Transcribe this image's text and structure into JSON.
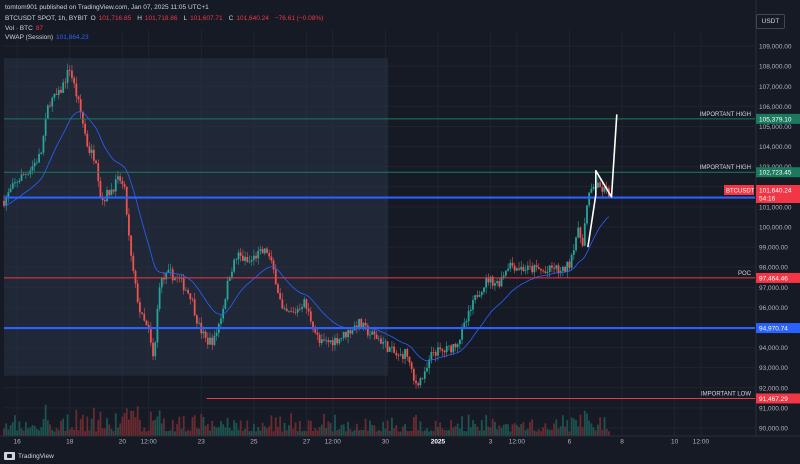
{
  "header": {
    "publisher": "tomtom901 published on TradingView.com, Jan 07, 2025 11:05 UTC+1",
    "symbol": "BTCUSDT SPOT, 1h, BYBIT",
    "open_label": "O",
    "open": "101,716.85",
    "high_label": "H",
    "high": "101,718.86",
    "low_label": "L",
    "low": "101,607.71",
    "close_label": "C",
    "close": "101,640.24",
    "change": "−76.61 (−0.08%)",
    "vol_label": "Vol · BTC",
    "vol_value": "87",
    "vwap_label": "VWAP (Session)",
    "vwap_value": "101,864.23"
  },
  "currency": "USDT",
  "footer": {
    "brand": "TradingView"
  },
  "colors": {
    "background": "#161a25",
    "up": "#26a69a",
    "down": "#ef5350",
    "red_line": "#f23645",
    "blue_line": "#2962ff",
    "green_line": "#1b7a5e",
    "vwap": "#2962ff"
  },
  "chart_data": {
    "type": "candlestick",
    "ylim": [
      89600,
      109800
    ],
    "y_ticks": [
      "109,000.00",
      "108,000.00",
      "107,000.00",
      "106,000.00",
      "105,000.00",
      "104,000.00",
      "103,000.00",
      "102,000.00",
      "101,000.00",
      "100,000.00",
      "99,000.00",
      "98,000.00",
      "97,000.00",
      "96,000.00",
      "95,000.00",
      "94,000.00",
      "93,000.00",
      "92,000.00",
      "91,000.00",
      "90,000.00"
    ],
    "x_ticks": [
      {
        "label": "16",
        "day": 0.5
      },
      {
        "label": "18",
        "day": 2.5
      },
      {
        "label": "20",
        "day": 4.5
      },
      {
        "label": "12:00",
        "day": 5.5
      },
      {
        "label": "23",
        "day": 7.5
      },
      {
        "label": "25",
        "day": 9.5
      },
      {
        "label": "27",
        "day": 11.5
      },
      {
        "label": "12:00",
        "day": 12.5
      },
      {
        "label": "30",
        "day": 14.5
      },
      {
        "label": "2025",
        "day": 16.5
      },
      {
        "label": "3",
        "day": 18.5
      },
      {
        "label": "12:00",
        "day": 19.5
      },
      {
        "label": "6",
        "day": 21.5
      },
      {
        "label": "8",
        "day": 23.5
      },
      {
        "label": "10",
        "day": 25.5
      },
      {
        "label": "12:00",
        "day": 26.5
      }
    ],
    "price_path": [
      [
        0,
        101300
      ],
      [
        0.5,
        102300
      ],
      [
        1.0,
        102900
      ],
      [
        1.4,
        103600
      ],
      [
        1.7,
        106200
      ],
      [
        2.1,
        106600
      ],
      [
        2.5,
        107900
      ],
      [
        2.9,
        105800
      ],
      [
        3.2,
        103900
      ],
      [
        3.5,
        103400
      ],
      [
        3.7,
        101300
      ],
      [
        4.1,
        101900
      ],
      [
        4.4,
        102400
      ],
      [
        4.6,
        101700
      ],
      [
        4.8,
        98700
      ],
      [
        5.0,
        97000
      ],
      [
        5.2,
        95600
      ],
      [
        5.5,
        94800
      ],
      [
        5.7,
        93200
      ],
      [
        5.9,
        97200
      ],
      [
        6.3,
        97700
      ],
      [
        6.7,
        97300
      ],
      [
        7.1,
        96600
      ],
      [
        7.4,
        95100
      ],
      [
        7.7,
        94300
      ],
      [
        8.0,
        94400
      ],
      [
        8.3,
        95800
      ],
      [
        8.6,
        97800
      ],
      [
        8.9,
        98600
      ],
      [
        9.3,
        98200
      ],
      [
        9.6,
        98600
      ],
      [
        10.0,
        98800
      ],
      [
        10.3,
        97600
      ],
      [
        10.6,
        95700
      ],
      [
        11.0,
        95700
      ],
      [
        11.4,
        96300
      ],
      [
        11.7,
        95300
      ],
      [
        12.0,
        94200
      ],
      [
        12.4,
        94300
      ],
      [
        12.8,
        94500
      ],
      [
        13.2,
        94900
      ],
      [
        13.5,
        95200
      ],
      [
        13.9,
        94700
      ],
      [
        14.3,
        94400
      ],
      [
        14.6,
        94000
      ],
      [
        15.0,
        93500
      ],
      [
        15.3,
        93800
      ],
      [
        15.6,
        92200
      ],
      [
        16.0,
        92600
      ],
      [
        16.3,
        93800
      ],
      [
        16.7,
        93800
      ],
      [
        17.0,
        94000
      ],
      [
        17.3,
        94400
      ],
      [
        17.7,
        95700
      ],
      [
        18.0,
        96700
      ],
      [
        18.4,
        97400
      ],
      [
        18.8,
        97200
      ],
      [
        19.2,
        98200
      ],
      [
        19.5,
        98000
      ],
      [
        19.9,
        97900
      ],
      [
        20.3,
        97900
      ],
      [
        20.6,
        97700
      ],
      [
        20.9,
        98000
      ],
      [
        21.2,
        97700
      ],
      [
        21.5,
        98200
      ],
      [
        21.8,
        99800
      ],
      [
        22.0,
        99300
      ],
      [
        22.2,
        101300
      ],
      [
        22.4,
        102100
      ],
      [
        22.7,
        101900
      ],
      [
        23.0,
        101700
      ]
    ],
    "series": [
      {
        "name": "Vol · BTC"
      },
      {
        "name": "VWAP (Session)"
      }
    ],
    "levels": [
      {
        "label": "",
        "value": 105379.1,
        "value_label": "105,379.10",
        "color": "#1b7a5e",
        "tag_color": "#1b7a5e",
        "note": "IMPORTANT HIGH"
      },
      {
        "label": "",
        "value": 102723.45,
        "value_label": "102,723.45",
        "color": "#1b7a5e",
        "tag_color": "#1b7a5e",
        "note": "IMPORTANT HIGH"
      },
      {
        "label": "",
        "value": 101462.39,
        "value_label": "101,462.39",
        "color": "#2962ff",
        "tag_color": "#2962ff",
        "note": ""
      },
      {
        "label": "",
        "value": 97464.46,
        "value_label": "97,464.46",
        "color": "#f23645",
        "tag_color": "#f23645",
        "note": "POC"
      },
      {
        "label": "",
        "value": 94970.74,
        "value_label": "94,970.74",
        "color": "#2962ff",
        "tag_color": "#2962ff",
        "note": ""
      },
      {
        "label": "",
        "value": 91467.29,
        "value_label": "91,467.29",
        "color": "#f23645",
        "tag_color": "#f23645",
        "note": "IMPORTANT LOW"
      }
    ],
    "last_price": {
      "symbol": "BTCUSDT",
      "value": 101640.24,
      "value_label": "101,640.24",
      "countdown": "54:16"
    },
    "range_box": {
      "day_start": 0,
      "day_end": 14.6,
      "price_low": 92600,
      "price_high": 108400
    },
    "drawing": {
      "points": [
        [
          22.2,
          99000
        ],
        [
          22.5,
          101600
        ],
        [
          22.5,
          102800
        ],
        [
          23.1,
          101500
        ],
        [
          23.3,
          105600
        ]
      ]
    }
  }
}
